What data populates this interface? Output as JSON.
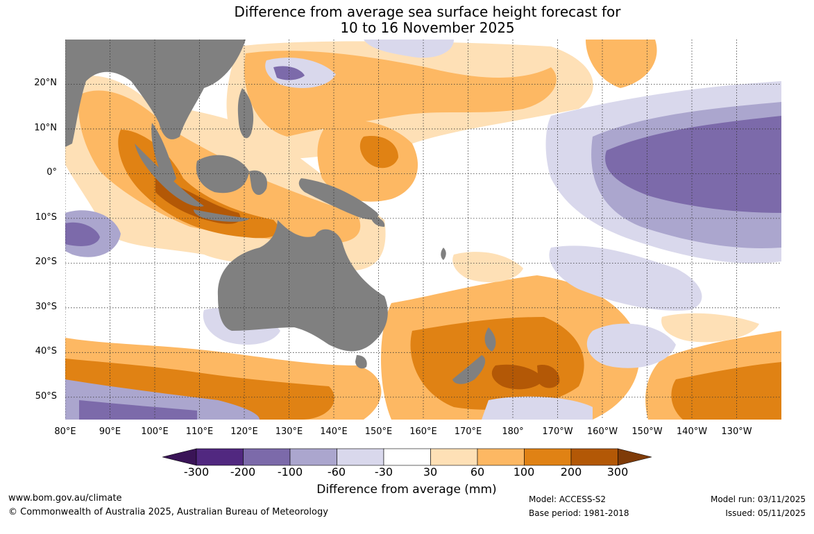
{
  "title": {
    "line1": "Difference from average sea surface height forecast for",
    "line2": "10 to 16 November 2025"
  },
  "map": {
    "land_color": "#808080",
    "latitude_labels": [
      "20°N",
      "10°N",
      "0°",
      "10°S",
      "20°S",
      "30°S",
      "40°S",
      "50°S"
    ],
    "latitude_values": [
      20,
      10,
      0,
      -10,
      -20,
      -30,
      -40,
      -50
    ],
    "longitude_labels": [
      "80°E",
      "90°E",
      "100°E",
      "110°E",
      "120°E",
      "130°E",
      "140°E",
      "150°E",
      "160°E",
      "170°E",
      "180°",
      "170°W",
      "160°W",
      "150°W",
      "140°W",
      "130°W"
    ],
    "longitude_values": [
      80,
      90,
      100,
      110,
      120,
      130,
      140,
      150,
      160,
      170,
      180,
      190,
      200,
      210,
      220,
      230
    ],
    "lon_range": [
      80,
      240
    ],
    "lat_range": [
      -55,
      30
    ]
  },
  "colorbar": {
    "title": "Difference from average (mm)",
    "tick_labels": [
      "-300",
      "-200",
      "-100",
      "-60",
      "-30",
      "30",
      "60",
      "100",
      "200",
      "300"
    ],
    "colors": [
      "#3a1457",
      "#512880",
      "#7c6aaa",
      "#aba6ce",
      "#d9d8ec",
      "#ffffff",
      "#fee0b6",
      "#fdb863",
      "#e08214",
      "#b35806",
      "#7f3b08"
    ]
  },
  "footer": {
    "website": "www.bom.gov.au/climate",
    "copyright": "© Commonwealth of Australia 2025, Australian Bureau of Meteorology",
    "model": "Model: ACCESS-S2",
    "base_period": "Base period: 1981-2018",
    "model_run": "Model run: 03/11/2025",
    "issued": "Issued: 05/11/2025"
  }
}
